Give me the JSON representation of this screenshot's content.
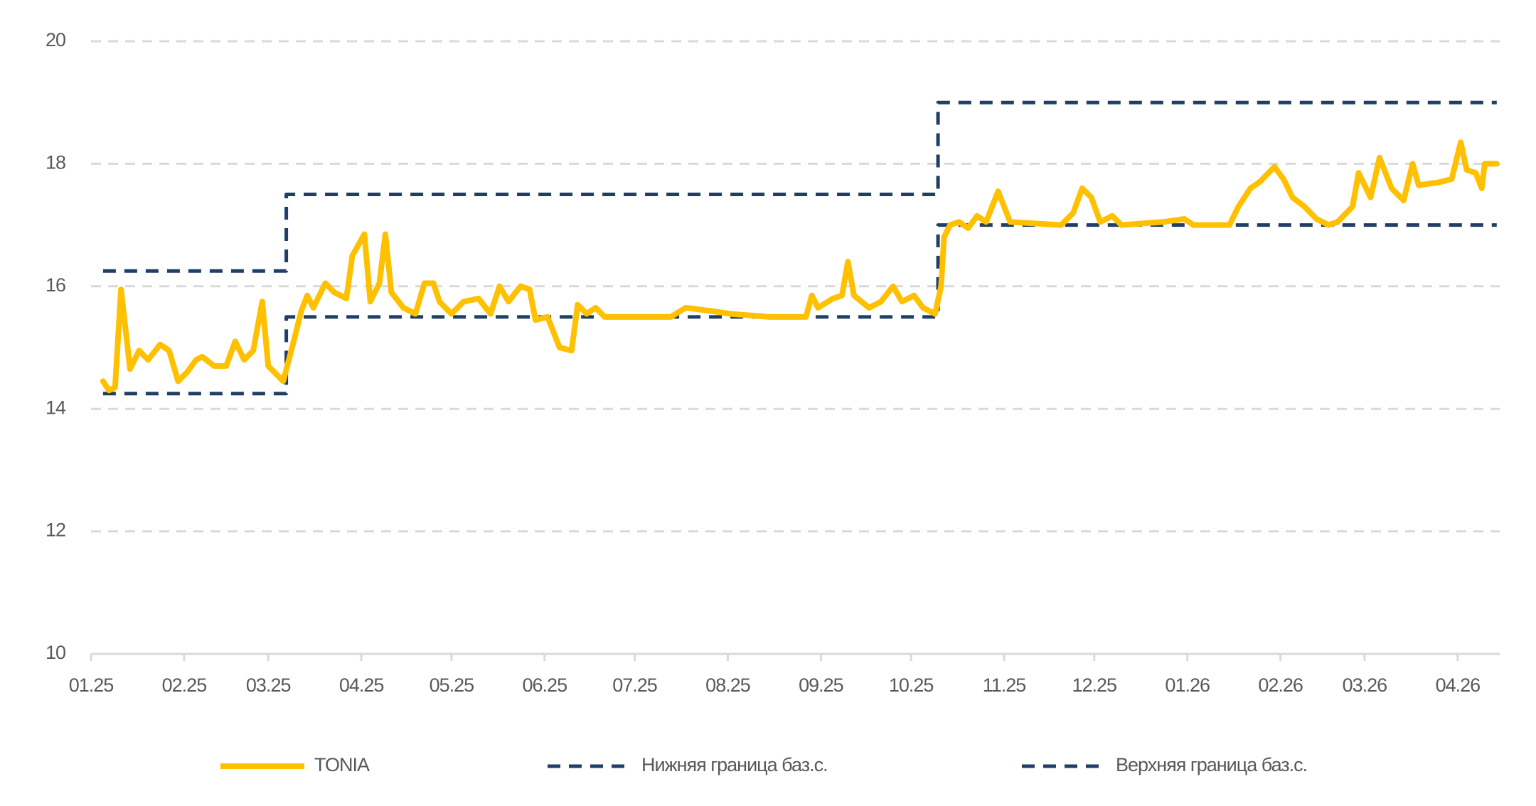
{
  "chart_data": {
    "type": "line",
    "xlim": [
      0,
      469
    ],
    "xticks": [
      {
        "value": 0,
        "label": "01.25"
      },
      {
        "value": 31,
        "label": "02.25"
      },
      {
        "value": 59,
        "label": "03.25"
      },
      {
        "value": 90,
        "label": "04.25"
      },
      {
        "value": 120,
        "label": "05.25"
      },
      {
        "value": 151,
        "label": "06.25"
      },
      {
        "value": 181,
        "label": "07.25"
      },
      {
        "value": 212,
        "label": "08.25"
      },
      {
        "value": 243,
        "label": "09.25"
      },
      {
        "value": 273,
        "label": "10.25"
      },
      {
        "value": 304,
        "label": "11.25"
      },
      {
        "value": 334,
        "label": "12.25"
      },
      {
        "value": 365,
        "label": "01.26"
      },
      {
        "value": 396,
        "label": "02.26"
      },
      {
        "value": 424,
        "label": "03.26"
      },
      {
        "value": 455,
        "label": "04.26"
      }
    ],
    "ylim": [
      10,
      20
    ],
    "yticks": [
      10,
      12,
      14,
      16,
      18,
      20
    ],
    "grid": true,
    "legend": "bottom",
    "series": [
      {
        "name": "TONIA",
        "color": "#FFC000",
        "dash": false,
        "x": [
          4,
          6,
          8,
          10,
          13,
          16,
          19,
          23,
          26,
          29,
          32,
          35,
          37,
          41,
          45,
          48,
          51,
          54,
          57,
          59,
          62,
          64,
          68,
          70,
          72,
          74,
          78,
          81,
          85,
          87,
          91,
          93,
          96,
          98,
          100,
          104,
          108,
          111,
          114,
          116,
          120,
          124,
          129,
          133,
          136,
          139,
          143,
          146,
          148,
          152,
          156,
          160,
          162,
          165,
          168,
          171,
          193,
          198,
          206,
          213,
          226,
          238,
          240,
          242,
          247,
          250,
          252,
          254,
          259,
          263,
          267,
          270,
          274,
          277,
          281,
          283,
          284,
          286,
          289,
          292,
          295,
          298,
          302,
          306,
          323,
          327,
          330,
          333,
          336,
          340,
          343,
          357,
          364,
          367,
          379,
          382,
          386,
          389,
          394,
          397,
          400,
          404,
          408,
          412,
          415,
          420,
          422,
          426,
          429,
          433,
          437,
          440,
          442,
          449,
          453,
          456,
          458,
          461,
          463,
          464,
          468
        ],
        "values": [
          14.45,
          14.3,
          14.35,
          15.95,
          14.65,
          14.95,
          14.8,
          15.05,
          14.95,
          14.45,
          14.6,
          14.8,
          14.85,
          14.7,
          14.7,
          15.1,
          14.8,
          14.95,
          15.75,
          14.7,
          14.55,
          14.45,
          15.2,
          15.6,
          15.85,
          15.65,
          16.05,
          15.9,
          15.8,
          16.5,
          16.85,
          15.75,
          16.05,
          16.85,
          15.9,
          15.65,
          15.55,
          16.05,
          16.05,
          15.75,
          15.55,
          15.75,
          15.8,
          15.55,
          16.0,
          15.75,
          16.0,
          15.95,
          15.45,
          15.5,
          15.0,
          14.95,
          15.7,
          15.55,
          15.65,
          15.5,
          15.5,
          15.65,
          15.6,
          15.55,
          15.5,
          15.5,
          15.85,
          15.65,
          15.8,
          15.85,
          16.4,
          15.85,
          15.65,
          15.75,
          16.0,
          15.75,
          15.85,
          15.65,
          15.55,
          16.0,
          16.8,
          17.0,
          17.05,
          16.95,
          17.15,
          17.05,
          17.55,
          17.05,
          17.0,
          17.2,
          17.6,
          17.45,
          17.05,
          17.15,
          17.0,
          17.05,
          17.1,
          17.0,
          17.0,
          17.3,
          17.6,
          17.7,
          17.95,
          17.75,
          17.45,
          17.3,
          17.1,
          17.0,
          17.05,
          17.3,
          17.85,
          17.45,
          18.1,
          17.6,
          17.4,
          18.0,
          17.65,
          17.7,
          17.75,
          18.35,
          17.9,
          17.85,
          17.6,
          18.0,
          18.0
        ]
      },
      {
        "name": "Нижняя граница баз.с.",
        "color": "#1F3F66",
        "dash": true,
        "x": [
          4,
          65,
          65,
          282,
          282,
          468
        ],
        "values": [
          14.25,
          14.25,
          15.5,
          15.5,
          17,
          17
        ]
      },
      {
        "name": "Верхняя граница баз.с.",
        "color": "#1F3F66",
        "dash": true,
        "x": [
          4,
          65,
          65,
          282,
          282,
          468
        ],
        "values": [
          16.25,
          16.25,
          17.5,
          17.5,
          19,
          19
        ]
      }
    ]
  }
}
